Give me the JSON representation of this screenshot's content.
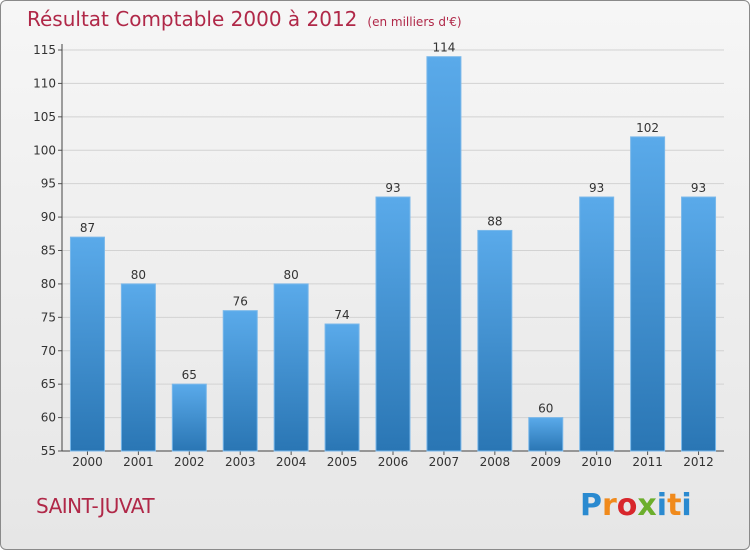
{
  "chart_data": {
    "type": "bar",
    "title": "Résultat Comptable 2000 à 2012",
    "subtitle": "(en milliers d'€)",
    "categories": [
      "2000",
      "2001",
      "2002",
      "2003",
      "2004",
      "2005",
      "2006",
      "2007",
      "2008",
      "2009",
      "2010",
      "2011",
      "2012"
    ],
    "values": [
      87,
      80,
      65,
      76,
      80,
      74,
      93,
      114,
      88,
      60,
      93,
      102,
      93
    ],
    "ylim": [
      55,
      115
    ],
    "yticks": [
      55,
      60,
      65,
      70,
      75,
      80,
      85,
      90,
      95,
      100,
      105,
      110,
      115
    ],
    "xlabel": "",
    "ylabel": "",
    "grid": true,
    "bar_color": "#4a98d8"
  },
  "footer": {
    "commune": "SAINT-JUVAT"
  },
  "logo": {
    "letters": [
      "P",
      "r",
      "o",
      "x",
      "i",
      "t",
      "i"
    ],
    "colors": [
      "#2a8ad0",
      "#f08a1c",
      "#d8262c",
      "#6cae2c",
      "#2a8ad0",
      "#f08a1c",
      "#2a8ad0"
    ]
  }
}
